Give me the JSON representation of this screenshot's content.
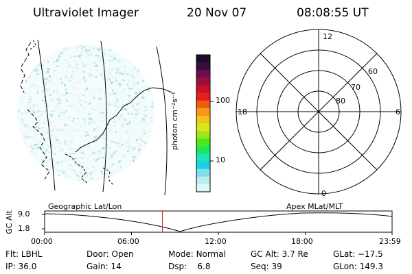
{
  "header": {
    "instrument": "Ultraviolet Imager",
    "date": "20 Nov 07",
    "time": "08:08:55 UT"
  },
  "colorbar": {
    "unit_label": "photon cm⁻²s⁻¹",
    "ticks": [
      "100",
      "10"
    ],
    "colors": [
      "#1a0a2e",
      "#3a0d3a",
      "#6a0f4a",
      "#9a0f3c",
      "#c8102a",
      "#e61f1a",
      "#f25a10",
      "#f7961c",
      "#f5c21c",
      "#d9e81c",
      "#9fe61c",
      "#4ee61c",
      "#1ce65a",
      "#1ce6b4",
      "#1cd1e6",
      "#7fe0ea",
      "#b8eef2",
      "#dff6f8"
    ]
  },
  "polar": {
    "mlt_labels": [
      "12",
      "18",
      "6",
      "0"
    ],
    "lat_labels": [
      "60",
      "70",
      "80"
    ]
  },
  "orbit": {
    "y_axis_title": "GC Alt",
    "y_ticks": [
      "9.0",
      "1.8"
    ],
    "left_caption": "Geographic Lat/Lon",
    "right_caption": "Apex  MLat/MLT",
    "x_ticks": [
      "00:00",
      "06:00",
      "12:00",
      "18:00",
      "23:59"
    ],
    "current_time_fraction": 0.339
  },
  "status": {
    "row1": [
      {
        "label": "Flt:",
        "value": "LBHL"
      },
      {
        "label": "Door:",
        "value": "Open"
      },
      {
        "label": "Mode:",
        "value": "Normal"
      },
      {
        "label": "GC Alt:",
        "value": "3.7 Re"
      },
      {
        "label": "GLat:",
        "value": "−17.5"
      }
    ],
    "row2": [
      {
        "label": "IP:",
        "value": "36.0"
      },
      {
        "label": "Gain:",
        "value": "14"
      },
      {
        "label": "Dsp:",
        "value": "6.8"
      },
      {
        "label": "Seq:",
        "value": "39"
      },
      {
        "label": "GLon:",
        "value": "149.3"
      }
    ]
  }
}
